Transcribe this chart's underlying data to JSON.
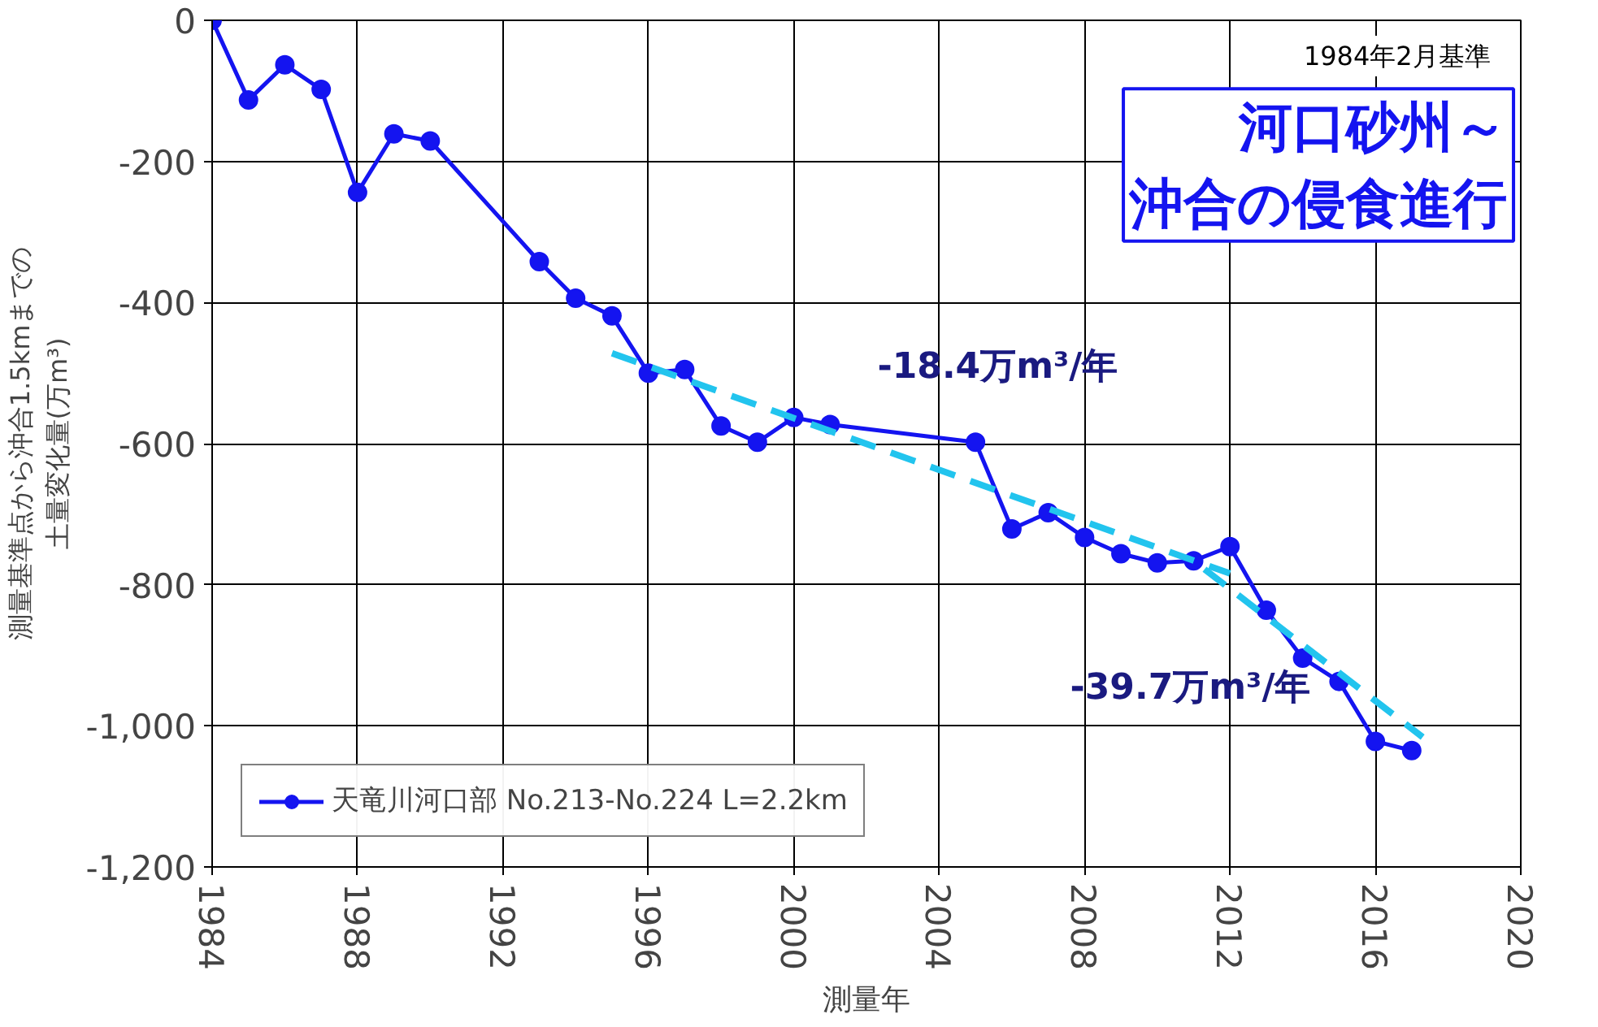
{
  "chart_data": {
    "type": "line",
    "xlabel": "測量年",
    "ylabel": "測量基準点から沖合1.5kmまでの土量変化量(万m³)",
    "xlim": [
      1984,
      2020
    ],
    "xticks": [
      1984,
      1988,
      1992,
      1996,
      2000,
      2004,
      2008,
      2012,
      2016,
      2020
    ],
    "ylim": [
      -1200,
      0
    ],
    "yticks": [
      {
        "value": 0,
        "label": "0"
      },
      {
        "value": -200,
        "label": "-200"
      },
      {
        "value": -400,
        "label": "-400"
      },
      {
        "value": -600,
        "label": "-600"
      },
      {
        "value": -800,
        "label": "-800"
      },
      {
        "value": -1000,
        "label": "-1,000"
      },
      {
        "value": -1200,
        "label": "-1,200"
      }
    ],
    "grid": true,
    "legend": "bottom left",
    "marker": "circle",
    "line_style": "solid",
    "series": [
      {
        "name": "天竜川河口部 No.213-No.224 L=2.2km",
        "color": "#1414f0",
        "x": [
          1984,
          1985,
          1986,
          1987,
          1988,
          1989,
          1990,
          1993,
          1994,
          1995,
          1996,
          1997,
          1998,
          1999,
          2000,
          2001,
          2005,
          2006,
          2007,
          2008,
          2009,
          2010,
          2011,
          2012,
          2013,
          2014,
          2015,
          2016,
          2017
        ],
        "values": [
          0,
          -113,
          -63,
          -98,
          -244,
          -161,
          -171,
          -342,
          -394,
          -419,
          -500,
          -495,
          -575,
          -598,
          -563,
          -573,
          -598,
          -721,
          -698,
          -733,
          -756,
          -769,
          -766,
          -746,
          -836,
          -904,
          -937,
          -1022,
          -1035
        ]
      },
      {
        "type": "line",
        "color": "#22c4ee",
        "line_style": "dashed",
        "marker": "none",
        "x": [
          1995,
          2012
        ],
        "values": [
          -472,
          -784
        ]
      },
      {
        "type": "line",
        "color": "#22c4ee",
        "line_style": "dashed",
        "marker": "none",
        "x": [
          2011.3,
          2017.3
        ],
        "values": [
          -778,
          -1016
        ]
      }
    ],
    "annotations": [
      "1984年2月基準",
      "河口砂州～沖合の侵食進行",
      "-18.4万m³/年",
      "-39.7万m³/年"
    ]
  }
}
